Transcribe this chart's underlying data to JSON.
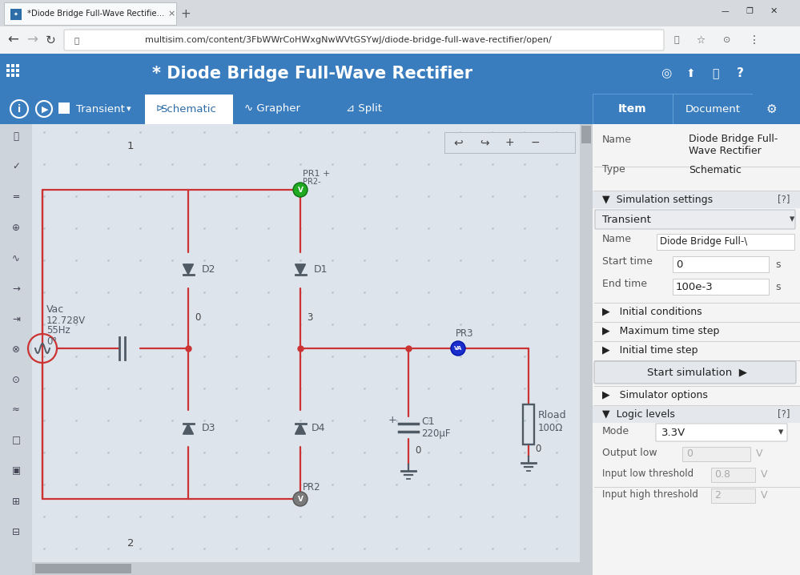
{
  "bg_color": "#f0f0f0",
  "tab_bar_bg": "#d8dade",
  "tab_bg": "#f8f8f8",
  "tab_text": "*Diode Bridge Full-Wave Rectifie...",
  "address_bar_bg": "#f1f3f4",
  "address_url": "multisim.com/content/3FbWWrCoHWxgNwWVtGSYwJ/diode-bridge-full-wave-rectifier/open/",
  "header_bg": "#3a7dbf",
  "header_title": "* Diode Bridge Full-Wave Rectifier",
  "toolbar_bg": "#3a7dbf",
  "active_tab_bg": "#ffffff",
  "active_tab_color": "#2d6da8",
  "schematic_bg": "#dde4ec",
  "grid_color": "#c5cfd9",
  "wire_color": "#cc3333",
  "component_color": "#505a65",
  "right_panel_bg": "#f4f4f4",
  "right_panel_header_bg": "#3a7dbf",
  "left_toolbar_bg": "#dde4ec",
  "scrollbar_bg": "#c8cdd3",
  "scrollbar_thumb": "#9aa0a6",
  "node_label_color": "#444444",
  "label_color": "#444455"
}
